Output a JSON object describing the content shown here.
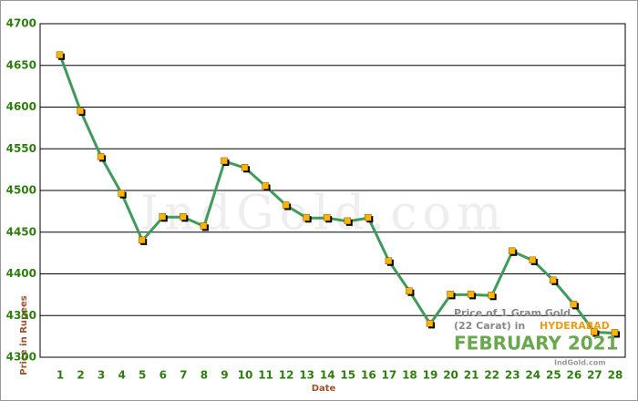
{
  "chart_data": {
    "type": "line",
    "x_label": "Date",
    "y_label": "Price in Rupees",
    "watermark": "IndGold.com",
    "caption_line1": "Price of 1 Gram Gold",
    "caption_line2": "(22 Carat) in",
    "caption_city": "HYDERABAD",
    "caption_month": "FEBRUARY 2021",
    "caption_source": "IndGold.com",
    "categories": [
      "1",
      "2",
      "3",
      "4",
      "5",
      "6",
      "7",
      "8",
      "9",
      "10",
      "11",
      "12",
      "13",
      "14",
      "15",
      "16",
      "17",
      "18",
      "19",
      "20",
      "21",
      "22",
      "23",
      "24",
      "25",
      "26",
      "27",
      "28"
    ],
    "series": [
      {
        "name": "Price",
        "color": "#3f9b5a",
        "marker_color": "#ffb400",
        "values": [
          4662,
          4595,
          4540,
          4496,
          4440,
          4468,
          4468,
          4457,
          4535,
          4527,
          4505,
          4482,
          4467,
          4467,
          4463,
          4467,
          4415,
          4379,
          4340,
          4375,
          4375,
          4374,
          4427,
          4416,
          4392,
          4363,
          4330,
          4329
        ]
      }
    ],
    "ylim": [
      4300,
      4700
    ],
    "yticks": [
      4300,
      4350,
      4400,
      4450,
      4500,
      4550,
      4600,
      4650,
      4700
    ],
    "grid": true
  }
}
